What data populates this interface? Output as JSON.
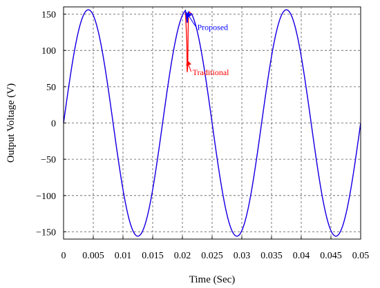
{
  "chart_data": {
    "type": "line",
    "xlabel": "Time (Sec)",
    "ylabel": "Output Voltage (V)",
    "xlim": [
      0,
      0.05
    ],
    "ylim": [
      -160,
      160
    ],
    "x_ticks": [
      0,
      0.005,
      0.01,
      0.015,
      0.02,
      0.025,
      0.03,
      0.035,
      0.04,
      0.045,
      0.05
    ],
    "x_tick_labels": [
      "0",
      "0.005",
      "0.01",
      "0.015",
      "0.02",
      "0.025",
      "0.03",
      "0.035",
      "0.04",
      "0.045",
      "0.05"
    ],
    "y_ticks": [
      -150,
      -100,
      -50,
      0,
      50,
      100,
      150
    ],
    "y_tick_labels": [
      "−150",
      "−100",
      "−50",
      "0",
      "50",
      "100",
      "150"
    ],
    "grid": true,
    "grid_style": "dashed",
    "series": [
      {
        "name": "Traditional",
        "color": "#ff0000",
        "amplitude": 156,
        "frequency_hz": 60,
        "dip": {
          "points": [
            [
              0.0205,
              156
            ],
            [
              0.02075,
              110
            ],
            [
              0.0208,
              70
            ],
            [
              0.0209,
              78
            ],
            [
              0.021,
              150
            ],
            [
              0.0212,
              153
            ],
            [
              0.0215,
              150
            ]
          ]
        }
      },
      {
        "name": "Proposed",
        "color": "#0000ff",
        "amplitude": 156,
        "frequency_hz": 60,
        "dip": {
          "points": [
            [
              0.0205,
              156
            ],
            [
              0.0207,
              145
            ],
            [
              0.0208,
              138
            ],
            [
              0.021,
              153
            ],
            [
              0.0212,
              150
            ],
            [
              0.0215,
              151
            ]
          ]
        }
      }
    ],
    "annotations": [
      {
        "text": "Proposed",
        "color": "#0000ff",
        "x": 0.0225,
        "y": 128,
        "arrow_to": [
          0.0207,
          152
        ]
      },
      {
        "text": "Traditional",
        "color": "#ff0000",
        "x": 0.0217,
        "y": 66,
        "arrow_to": [
          0.0208,
          86
        ]
      }
    ]
  }
}
